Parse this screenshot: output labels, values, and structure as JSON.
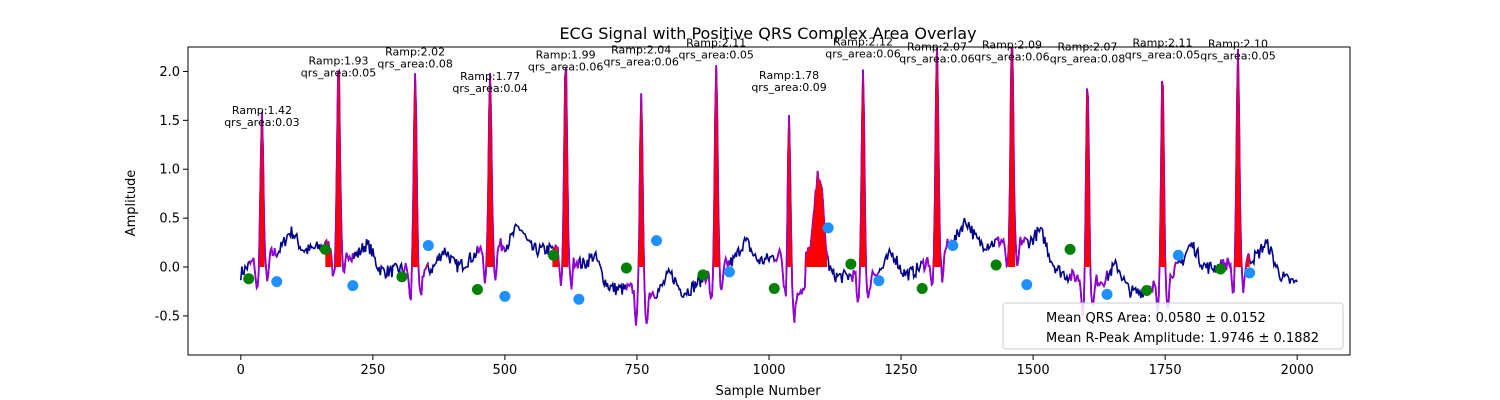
{
  "chart_data": {
    "type": "line",
    "title": "ECG Signal with Positive QRS Complex Area Overlay",
    "xlabel": "Sample Number",
    "ylabel": "Amplitude",
    "xlim": [
      -100,
      2100
    ],
    "ylim": [
      -0.9,
      2.25
    ],
    "x_ticks": [
      0,
      250,
      500,
      750,
      1000,
      1250,
      1500,
      1750,
      2000
    ],
    "y_ticks": [
      -0.5,
      0.0,
      0.5,
      1.0,
      1.5,
      2.0
    ],
    "grid": false,
    "colors": {
      "signal": "#00008b",
      "qrs_segment": "#9400d3",
      "qrs_area": "#ff0000",
      "onset_marker": "#008000",
      "offset_marker": "#1e90ff"
    },
    "r_peaks": [
      {
        "x": 40,
        "amp": 1.42,
        "label_amp": "Ramp:1.42",
        "label_area": "qrs_area:0.03"
      },
      {
        "x": 185,
        "amp": 1.93,
        "label_amp": "Ramp:1.93",
        "label_area": "qrs_area:0.05"
      },
      {
        "x": 330,
        "amp": 2.02,
        "label_amp": "Ramp:2.02",
        "label_area": "qrs_area:0.08"
      },
      {
        "x": 472,
        "amp": 1.77,
        "label_amp": "Ramp:1.77",
        "label_area": "qrs_area:0.04"
      },
      {
        "x": 615,
        "amp": 1.99,
        "label_amp": "Ramp:1.99",
        "label_area": "qrs_area:0.06"
      },
      {
        "x": 758,
        "amp": 2.04,
        "label_amp": "Ramp:2.04",
        "label_area": "qrs_area:0.06"
      },
      {
        "x": 900,
        "amp": 2.11,
        "label_amp": "Ramp:2.11",
        "label_area": "qrs_area:0.05"
      },
      {
        "x": 1038,
        "amp": 1.78,
        "label_amp": "Ramp:1.78",
        "label_area": "qrs_area:0.09"
      },
      {
        "x": 1178,
        "amp": 2.12,
        "label_amp": "Ramp:2.12",
        "label_area": "qrs_area:0.06"
      },
      {
        "x": 1318,
        "amp": 2.07,
        "label_amp": "Ramp:2.07",
        "label_area": "qrs_area:0.06"
      },
      {
        "x": 1460,
        "amp": 2.09,
        "label_amp": "Ramp:2.09",
        "label_area": "qrs_area:0.06"
      },
      {
        "x": 1603,
        "amp": 2.07,
        "label_amp": "Ramp:2.07",
        "label_area": "qrs_area:0.08"
      },
      {
        "x": 1745,
        "amp": 2.11,
        "label_amp": "Ramp:2.11",
        "label_area": "qrs_area:0.05"
      },
      {
        "x": 1888,
        "amp": 2.1,
        "label_amp": "Ramp:2.10",
        "label_area": "qrs_area:0.05"
      }
    ],
    "qrs_areas": [
      {
        "start": 35,
        "end": 45,
        "base": 0.0
      },
      {
        "start": 160,
        "end": 190,
        "base": 0.0
      },
      {
        "start": 315,
        "end": 355,
        "base": 0.0
      },
      {
        "start": 465,
        "end": 478,
        "base": 0.0
      },
      {
        "start": 590,
        "end": 620,
        "base": 0.0
      },
      {
        "start": 748,
        "end": 765,
        "base": 0.0
      },
      {
        "start": 890,
        "end": 906,
        "base": 0.0
      },
      {
        "start": 1035,
        "end": 1110,
        "base": 0.0
      },
      {
        "start": 1168,
        "end": 1184,
        "base": 0.0
      },
      {
        "start": 1310,
        "end": 1325,
        "base": 0.0
      },
      {
        "start": 1452,
        "end": 1466,
        "base": 0.0
      },
      {
        "start": 1580,
        "end": 1610,
        "base": 0.0
      },
      {
        "start": 1735,
        "end": 1770,
        "base": 0.0
      },
      {
        "start": 1880,
        "end": 1910,
        "base": 0.0
      }
    ],
    "onset_points": [
      {
        "x": 15,
        "y": -0.12
      },
      {
        "x": 160,
        "y": 0.18
      },
      {
        "x": 305,
        "y": -0.1
      },
      {
        "x": 448,
        "y": -0.23
      },
      {
        "x": 592,
        "y": 0.12
      },
      {
        "x": 730,
        "y": -0.01
      },
      {
        "x": 875,
        "y": -0.08
      },
      {
        "x": 1010,
        "y": -0.22
      },
      {
        "x": 1155,
        "y": 0.03
      },
      {
        "x": 1290,
        "y": -0.22
      },
      {
        "x": 1430,
        "y": 0.02
      },
      {
        "x": 1570,
        "y": 0.18
      },
      {
        "x": 1715,
        "y": -0.24
      },
      {
        "x": 1855,
        "y": -0.02
      }
    ],
    "offset_points": [
      {
        "x": 68,
        "y": -0.15
      },
      {
        "x": 212,
        "y": -0.19
      },
      {
        "x": 355,
        "y": 0.22
      },
      {
        "x": 500,
        "y": -0.3
      },
      {
        "x": 640,
        "y": -0.33
      },
      {
        "x": 787,
        "y": 0.27
      },
      {
        "x": 925,
        "y": -0.05
      },
      {
        "x": 1112,
        "y": 0.4
      },
      {
        "x": 1208,
        "y": -0.14
      },
      {
        "x": 1348,
        "y": 0.22
      },
      {
        "x": 1488,
        "y": -0.18
      },
      {
        "x": 1640,
        "y": -0.28
      },
      {
        "x": 1775,
        "y": 0.12
      },
      {
        "x": 1910,
        "y": -0.06
      }
    ],
    "legend": {
      "placement": "lower right",
      "entries": [
        "Mean QRS Area: 0.0580 ± 0.0152",
        "Mean R-Peak Amplitude: 1.9746 ± 0.1882"
      ]
    }
  }
}
